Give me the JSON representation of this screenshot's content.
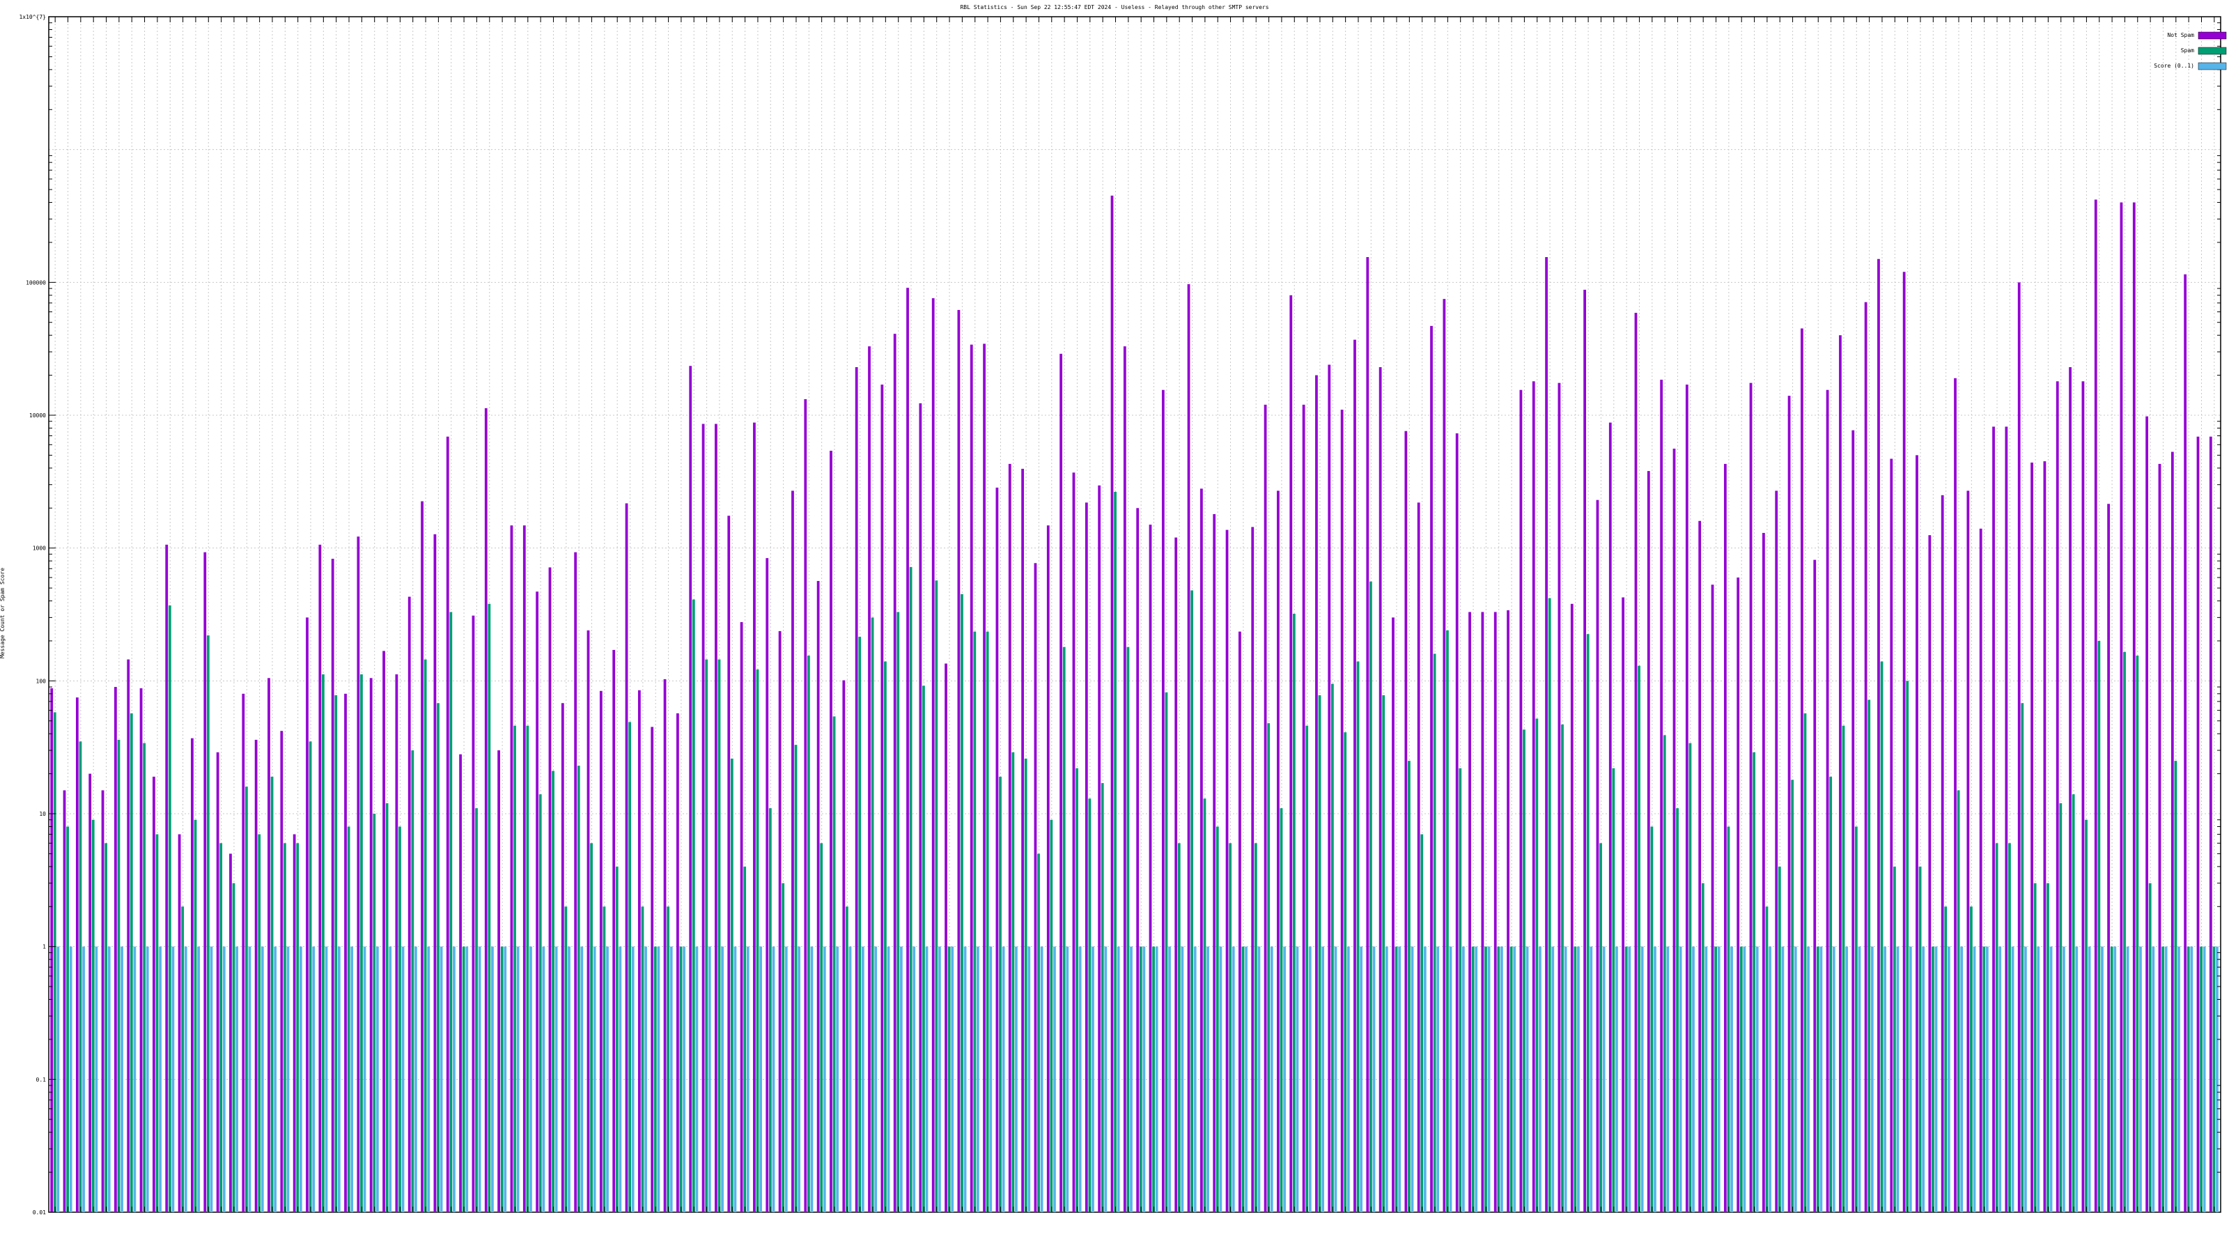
{
  "chart_data": {
    "type": "bar",
    "title": "RBL Statistics - Sun Sep 22 12:55:47 EDT 2024 - Useless - Relayed through other SMTP servers",
    "ylabel": "Message Count or Spam Score",
    "xlabel": "",
    "yscale": "log",
    "ylim": [
      0.01,
      10000000
    ],
    "y_ticks": [
      {
        "value": 10000000,
        "label": "1x10^{7}"
      },
      {
        "value": 100000,
        "label": "100000"
      },
      {
        "value": 10000,
        "label": "10000"
      },
      {
        "value": 1000,
        "label": "1000"
      },
      {
        "value": 100,
        "label": "100"
      },
      {
        "value": 10,
        "label": "10"
      },
      {
        "value": 1,
        "label": "1"
      },
      {
        "value": 0.1,
        "label": "0.1"
      },
      {
        "value": 0.01,
        "label": "0.01"
      }
    ],
    "grid": true,
    "legend_position": "top-right",
    "series": [
      {
        "name": "Not Spam",
        "color": "#9400D3",
        "values": [
          88,
          15,
          75,
          20,
          15,
          90,
          145,
          88,
          19,
          1060,
          7,
          37,
          930,
          29,
          5,
          80,
          36,
          105,
          42,
          7,
          300,
          1060,
          830,
          80,
          1220,
          105,
          168,
          112,
          430,
          2250,
          1270,
          6900,
          28,
          310,
          11300,
          30,
          1480,
          1480,
          470,
          715,
          68,
          930,
          240,
          84,
          171,
          2170,
          85,
          45,
          103,
          57,
          23500,
          8600,
          8600,
          1750,
          277,
          8800,
          840,
          237,
          2700,
          13200,
          565,
          5400,
          101,
          23000,
          33000,
          17000,
          41000,
          91000,
          12300,
          76000,
          135,
          62000,
          34000,
          34500,
          2850,
          4300,
          3950,
          770,
          1480,
          29000,
          3700,
          2200,
          2960,
          450000,
          33000,
          2000,
          1500,
          15500,
          1200,
          97000,
          2800,
          1800,
          1370,
          235,
          1440,
          12000,
          2700,
          80000,
          12000,
          20000,
          24000,
          11000,
          37000,
          155000,
          23000,
          300,
          7600,
          2200,
          47000,
          75000,
          7300,
          330,
          330,
          330,
          340,
          15500,
          18000,
          155000,
          17500,
          380,
          88000,
          2300,
          8800,
          425,
          59000,
          3800,
          18500,
          5600,
          17000,
          1600,
          530,
          4300,
          600,
          17500,
          1300,
          2700,
          14000,
          45000,
          815,
          15500,
          40000,
          7700,
          71000,
          150000,
          4700,
          120000,
          5000,
          1250,
          2500,
          19000,
          2700,
          1400,
          8200,
          8200,
          100000,
          4400,
          4500,
          18000,
          23000,
          18000,
          420000,
          2150,
          400000,
          400000,
          9800,
          4300,
          5300,
          115000,
          6900,
          6900
        ]
      },
      {
        "name": "Spam",
        "color": "#009E73",
        "values": [
          58,
          8,
          35,
          9,
          6,
          36,
          57,
          34,
          7,
          370,
          2,
          9,
          220,
          6,
          3,
          16,
          7,
          19,
          6,
          6,
          35,
          112,
          78,
          8,
          112,
          10,
          12,
          8,
          30,
          145,
          68,
          330,
          1,
          11,
          380,
          1,
          46,
          46,
          14,
          21,
          2,
          23,
          6,
          2,
          4,
          49,
          2,
          1,
          2,
          1,
          410,
          145,
          145,
          26,
          4,
          122,
          11,
          3,
          33,
          155,
          6,
          54,
          2,
          215,
          300,
          140,
          330,
          720,
          92,
          570,
          1,
          450,
          235,
          235,
          19,
          29,
          26,
          5,
          9,
          180,
          22,
          13,
          17,
          2650,
          180,
          1,
          1,
          82,
          6,
          480,
          13,
          8,
          6,
          1,
          6,
          48,
          11,
          320,
          46,
          78,
          95,
          41,
          140,
          560,
          78,
          1,
          25,
          7,
          160,
          240,
          22,
          1,
          1,
          1,
          1,
          43,
          52,
          420,
          47,
          1,
          225,
          6,
          22,
          1,
          130,
          8,
          39,
          11,
          34,
          3,
          1,
          8,
          1,
          29,
          2,
          4,
          18,
          57,
          1,
          19,
          46,
          8,
          72,
          140,
          4,
          100,
          4,
          1,
          2,
          15,
          2,
          1,
          6,
          6,
          68,
          3,
          3,
          12,
          14,
          9,
          200,
          1,
          165,
          155,
          3,
          1,
          25,
          1,
          1,
          1
        ]
      },
      {
        "name": "Score (0..1)",
        "color": "#56B4E9",
        "values": [
          1,
          1,
          1,
          1,
          1,
          1,
          1,
          1,
          1,
          1,
          1,
          1,
          1,
          1,
          1,
          1,
          1,
          1,
          1,
          1,
          1,
          1,
          1,
          1,
          1,
          1,
          1,
          1,
          1,
          1,
          1,
          1,
          1,
          1,
          1,
          1,
          1,
          1,
          1,
          1,
          1,
          1,
          1,
          1,
          1,
          1,
          1,
          1,
          1,
          1,
          1,
          1,
          1,
          1,
          1,
          1,
          1,
          1,
          1,
          1,
          1,
          1,
          1,
          1,
          1,
          1,
          1,
          1,
          1,
          1,
          1,
          1,
          1,
          1,
          1,
          1,
          1,
          1,
          1,
          1,
          1,
          1,
          1,
          1,
          1,
          1,
          1,
          1,
          1,
          1,
          1,
          1,
          1,
          1,
          1,
          1,
          1,
          1,
          1,
          1,
          1,
          1,
          1,
          1,
          1,
          1,
          1,
          1,
          1,
          1,
          1,
          1,
          1,
          1,
          1,
          1,
          1,
          1,
          1,
          1,
          1,
          1,
          1,
          1,
          1,
          1,
          1,
          1,
          1,
          1,
          1,
          1,
          1,
          1,
          1,
          1,
          1,
          1,
          1,
          1,
          1,
          1,
          1,
          1,
          1,
          1,
          1,
          1,
          1,
          1,
          1,
          1,
          1,
          1,
          1,
          1,
          1,
          1,
          1,
          1,
          1,
          1,
          1,
          1,
          1,
          1,
          1,
          1,
          1,
          1
        ]
      }
    ]
  }
}
